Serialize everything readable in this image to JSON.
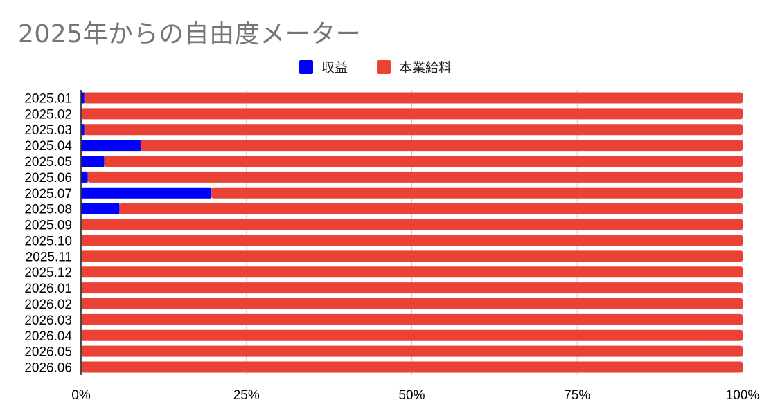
{
  "chart_data": {
    "type": "bar",
    "orientation": "horizontal",
    "stacked": "percent",
    "title": "2025年からの自由度メーター",
    "categories": [
      "2025.01",
      "2025.02",
      "2025.03",
      "2025.04",
      "2025.05",
      "2025.06",
      "2025.07",
      "2025.08",
      "2025.09",
      "2025.10",
      "2025.11",
      "2025.12",
      "2026.01",
      "2026.02",
      "2026.03",
      "2026.04",
      "2026.05",
      "2026.06"
    ],
    "series": [
      {
        "name": "収益",
        "color": "#0000ff",
        "values": [
          0.5,
          0,
          0.5,
          9,
          3.5,
          1,
          19.7,
          5.8,
          0,
          0,
          0,
          0,
          0,
          0,
          0,
          0,
          0,
          0
        ]
      },
      {
        "name": "本業給料",
        "color": "#ea4335",
        "values": [
          99.5,
          100,
          99.5,
          91,
          96.5,
          99,
          80.3,
          94.2,
          100,
          100,
          100,
          100,
          100,
          100,
          100,
          100,
          100,
          100
        ]
      }
    ],
    "xlim": [
      0,
      100
    ],
    "xticks": [
      "0%",
      "25%",
      "50%",
      "75%",
      "100%"
    ],
    "grid": true,
    "legend": "top-center"
  }
}
